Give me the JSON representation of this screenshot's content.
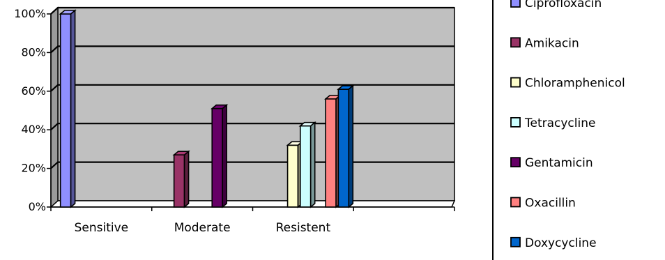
{
  "chart_data": {
    "type": "bar",
    "categories": [
      "Sensitive",
      "Moderate",
      "Resistent",
      ""
    ],
    "series": [
      {
        "name": "Ciprofloxacin",
        "color": "#8f8fff",
        "values": [
          100,
          0,
          0,
          0
        ]
      },
      {
        "name": "Amikacin",
        "color": "#993366",
        "values": [
          0,
          27,
          0,
          0
        ]
      },
      {
        "name": "Chloramphenicol",
        "color": "#ffffcc",
        "values": [
          0,
          0,
          32,
          0
        ]
      },
      {
        "name": "Tetracycline",
        "color": "#ccffff",
        "values": [
          0,
          0,
          42,
          0
        ]
      },
      {
        "name": "Gentamicin",
        "color": "#660066",
        "values": [
          0,
          51,
          0,
          0
        ]
      },
      {
        "name": "Oxacillin",
        "color": "#ff8080",
        "values": [
          0,
          0,
          56,
          0
        ]
      },
      {
        "name": "Doxycycline",
        "color": "#0066cc",
        "values": [
          0,
          0,
          61,
          0
        ]
      }
    ],
    "y_ticks": [
      "0%",
      "20%",
      "40%",
      "60%",
      "80%",
      "100%"
    ],
    "ylim": [
      0,
      100
    ],
    "grid": true,
    "plot_background": "#c0c0c0",
    "legend_position": "right"
  }
}
